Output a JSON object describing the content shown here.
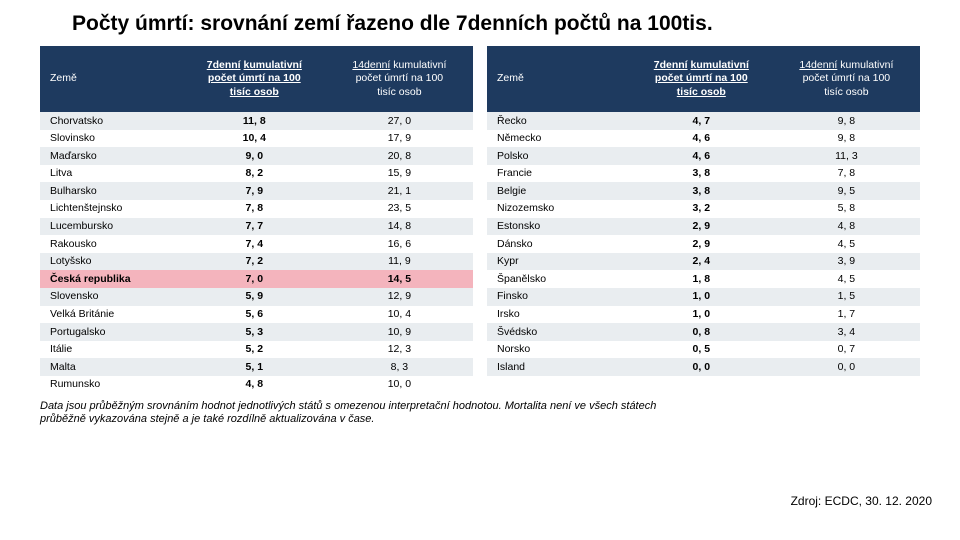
{
  "title": "Počty úmrtí: srovnání zemí řazeno dle 7denních počtů na 100tis.",
  "header": {
    "country": "Země",
    "col7": {
      "l1": "7denní",
      "l2": "kumulativní",
      "l3": "počet úmrtí na 100",
      "l4": "tisíc osob"
    },
    "col14": {
      "l1": "14denní",
      "l2": "kumulativní",
      "l3": "počet úmrtí na 100",
      "l4": "tisíc osob"
    }
  },
  "highlight_country": "Česká republika",
  "colors": {
    "header_bg": "#1e3a5f",
    "header_text": "#ffffff",
    "row_odd_bg": "#e9edf0",
    "row_even_bg": "#ffffff",
    "highlight_bg": "#f4b4bd"
  },
  "left_rows": [
    {
      "c": "Chorvatsko",
      "d7": "11, 8",
      "d14": "27, 0"
    },
    {
      "c": "Slovinsko",
      "d7": "10, 4",
      "d14": "17, 9"
    },
    {
      "c": "Maďarsko",
      "d7": "9, 0",
      "d14": "20, 8"
    },
    {
      "c": "Litva",
      "d7": "8, 2",
      "d14": "15, 9"
    },
    {
      "c": "Bulharsko",
      "d7": "7, 9",
      "d14": "21, 1"
    },
    {
      "c": "Lichtenštejnsko",
      "d7": "7, 8",
      "d14": "23, 5"
    },
    {
      "c": "Lucembursko",
      "d7": "7, 7",
      "d14": "14, 8"
    },
    {
      "c": "Rakousko",
      "d7": "7, 4",
      "d14": "16, 6"
    },
    {
      "c": "Lotyšsko",
      "d7": "7, 2",
      "d14": "11, 9"
    },
    {
      "c": "Česká republika",
      "d7": "7, 0",
      "d14": "14, 5"
    },
    {
      "c": "Slovensko",
      "d7": "5, 9",
      "d14": "12, 9"
    },
    {
      "c": "Velká Británie",
      "d7": "5, 6",
      "d14": "10, 4"
    },
    {
      "c": "Portugalsko",
      "d7": "5, 3",
      "d14": "10, 9"
    },
    {
      "c": "Itálie",
      "d7": "5, 2",
      "d14": "12, 3"
    },
    {
      "c": "Malta",
      "d7": "5, 1",
      "d14": "8, 3"
    },
    {
      "c": "Rumunsko",
      "d7": "4, 8",
      "d14": "10, 0"
    }
  ],
  "right_rows": [
    {
      "c": "Řecko",
      "d7": "4, 7",
      "d14": "9, 8"
    },
    {
      "c": "Německo",
      "d7": "4, 6",
      "d14": "9, 8"
    },
    {
      "c": "Polsko",
      "d7": "4, 6",
      "d14": "11, 3"
    },
    {
      "c": "Francie",
      "d7": "3, 8",
      "d14": "7, 8"
    },
    {
      "c": "Belgie",
      "d7": "3, 8",
      "d14": "9, 5"
    },
    {
      "c": "Nizozemsko",
      "d7": "3, 2",
      "d14": "5, 8"
    },
    {
      "c": "Estonsko",
      "d7": "2, 9",
      "d14": "4, 8"
    },
    {
      "c": "Dánsko",
      "d7": "2, 9",
      "d14": "4, 5"
    },
    {
      "c": "Kypr",
      "d7": "2, 4",
      "d14": "3, 9"
    },
    {
      "c": "Španělsko",
      "d7": "1, 8",
      "d14": "4, 5"
    },
    {
      "c": "Finsko",
      "d7": "1, 0",
      "d14": "1, 5"
    },
    {
      "c": "Irsko",
      "d7": "1, 0",
      "d14": "1, 7"
    },
    {
      "c": "Švédsko",
      "d7": "0, 8",
      "d14": "3, 4"
    },
    {
      "c": "Norsko",
      "d7": "0, 5",
      "d14": "0, 7"
    },
    {
      "c": "Island",
      "d7": "0, 0",
      "d14": "0, 0"
    }
  ],
  "footnote": "Data jsou průběžným srovnáním hodnot jednotlivých států s omezenou interpretační hodnotou. Mortalita není ve všech státech průběžně vykazována stejně a je také rozdílně aktualizována v čase.",
  "source": "Zdroj: ECDC, 30. 12. 2020"
}
